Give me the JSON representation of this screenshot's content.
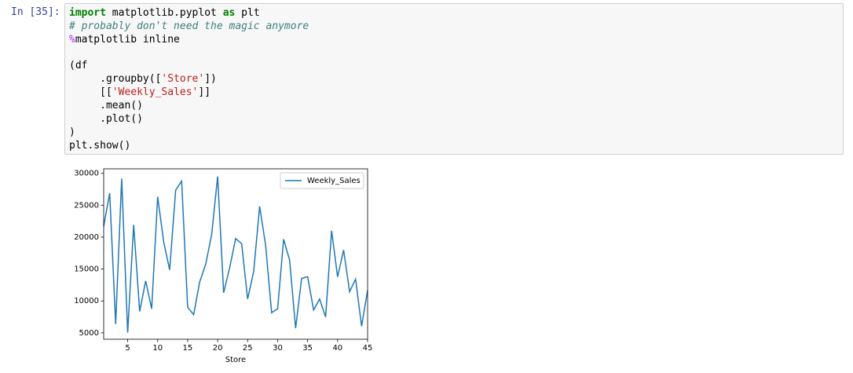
{
  "prompt": "In [35]:",
  "code_blocks": [
    [
      [
        {
          "text": "import",
          "color": "#008000",
          "bold": true
        },
        {
          "text": " matplotlib.pyplot "
        },
        {
          "text": "as",
          "color": "#008000",
          "bold": true
        },
        {
          "text": " plt"
        }
      ],
      [
        {
          "text": "# probably don't need the magic anymore",
          "color": "#408080",
          "italic": true
        }
      ],
      [
        {
          "text": "%",
          "color": "#AA22FF"
        },
        {
          "text": "matplotlib inline"
        }
      ]
    ],
    [
      [
        {
          "text": "(df"
        }
      ],
      [
        {
          "text": "     .groupby(["
        },
        {
          "text": "'Store'",
          "color": "#BA2121"
        },
        {
          "text": "])"
        }
      ],
      [
        {
          "text": "     [["
        },
        {
          "text": "'Weekly_Sales'",
          "color": "#BA2121"
        },
        {
          "text": "]]"
        }
      ],
      [
        {
          "text": "     .mean()"
        }
      ],
      [
        {
          "text": "     .plot()"
        }
      ],
      [
        {
          "text": ")"
        }
      ],
      [
        {
          "text": "plt.show()"
        }
      ]
    ]
  ],
  "chart_data": {
    "type": "line",
    "xlabel": "Store",
    "x": [
      1,
      2,
      3,
      4,
      5,
      6,
      7,
      8,
      9,
      10,
      11,
      12,
      13,
      14,
      15,
      16,
      17,
      18,
      19,
      20,
      21,
      22,
      23,
      24,
      25,
      26,
      27,
      28,
      29,
      30,
      31,
      32,
      33,
      34,
      35,
      36,
      37,
      38,
      39,
      40,
      41,
      42,
      43,
      44,
      45
    ],
    "series": [
      {
        "name": "Weekly_Sales",
        "color": "#1f77b4",
        "values": [
          21710,
          26898,
          6373,
          29161,
          5053,
          21913,
          8358,
          13133,
          8772,
          26332,
          19276,
          14867,
          27355,
          28784,
          9003,
          7864,
          12954,
          15734,
          20362,
          29508,
          11284,
          15182,
          19776,
          18970,
          10308,
          14555,
          24827,
          18715,
          8159,
          8765,
          19682,
          16373,
          5728,
          13523,
          13803,
          8585,
          10297,
          7493,
          21001,
          13764,
          17976,
          11444,
          13416,
          6039,
          11662
        ]
      }
    ],
    "xlim": [
      1,
      45
    ],
    "xticks": [
      5,
      10,
      15,
      20,
      25,
      30,
      35,
      40,
      45
    ],
    "ylim": [
      4000,
      30700
    ],
    "yticks": [
      5000,
      10000,
      15000,
      20000,
      25000,
      30000
    ],
    "legend": "upper right"
  }
}
